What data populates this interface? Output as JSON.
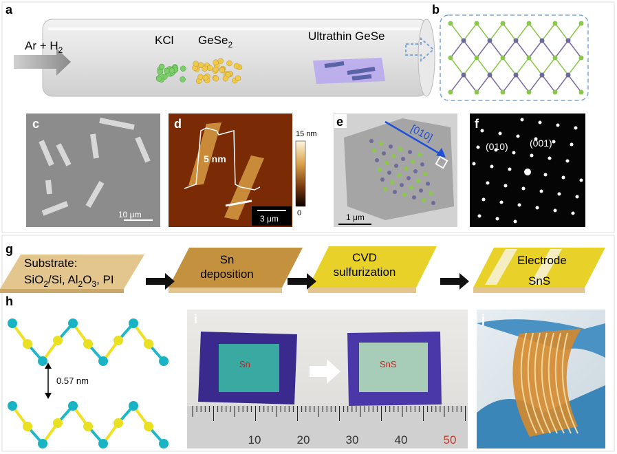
{
  "a": {
    "label": "a",
    "gas": "Ar + H",
    "gas_sub": "2",
    "salt": "KCl",
    "source": "GeSe",
    "source_sub": "2",
    "product": "Ultrathin GeSe"
  },
  "b": {
    "label": "b"
  },
  "c": {
    "label": "c",
    "scale_bar": "10 μm"
  },
  "d": {
    "label": "d",
    "height_profile": "5 nm",
    "colorbar_max": "15 nm",
    "colorbar_min": "0",
    "scale_bar": "3 μm"
  },
  "e": {
    "label": "e",
    "direction": "[010]",
    "scale_bar": "1 μm"
  },
  "f": {
    "label": "f",
    "spots": [
      "(010)",
      "(001)"
    ]
  },
  "g": {
    "label": "g",
    "substrate_title": "Substrate:",
    "substrate_line": [
      "SiO",
      "2",
      "/Si,  Al",
      "2",
      "O",
      "3",
      ", PI"
    ],
    "step_1": [
      "Sn",
      "deposition"
    ],
    "step_2": [
      "CVD",
      "sulfurization"
    ],
    "electrode": "Electrode",
    "film": "SnS"
  },
  "h": {
    "label": "h",
    "spacing": "0.57 nm"
  },
  "i": {
    "label": "i",
    "before": "Sn",
    "after": "SnS",
    "ruler": [
      "10",
      "20",
      "30",
      "40",
      "50"
    ]
  },
  "j": {
    "label": "j"
  }
}
